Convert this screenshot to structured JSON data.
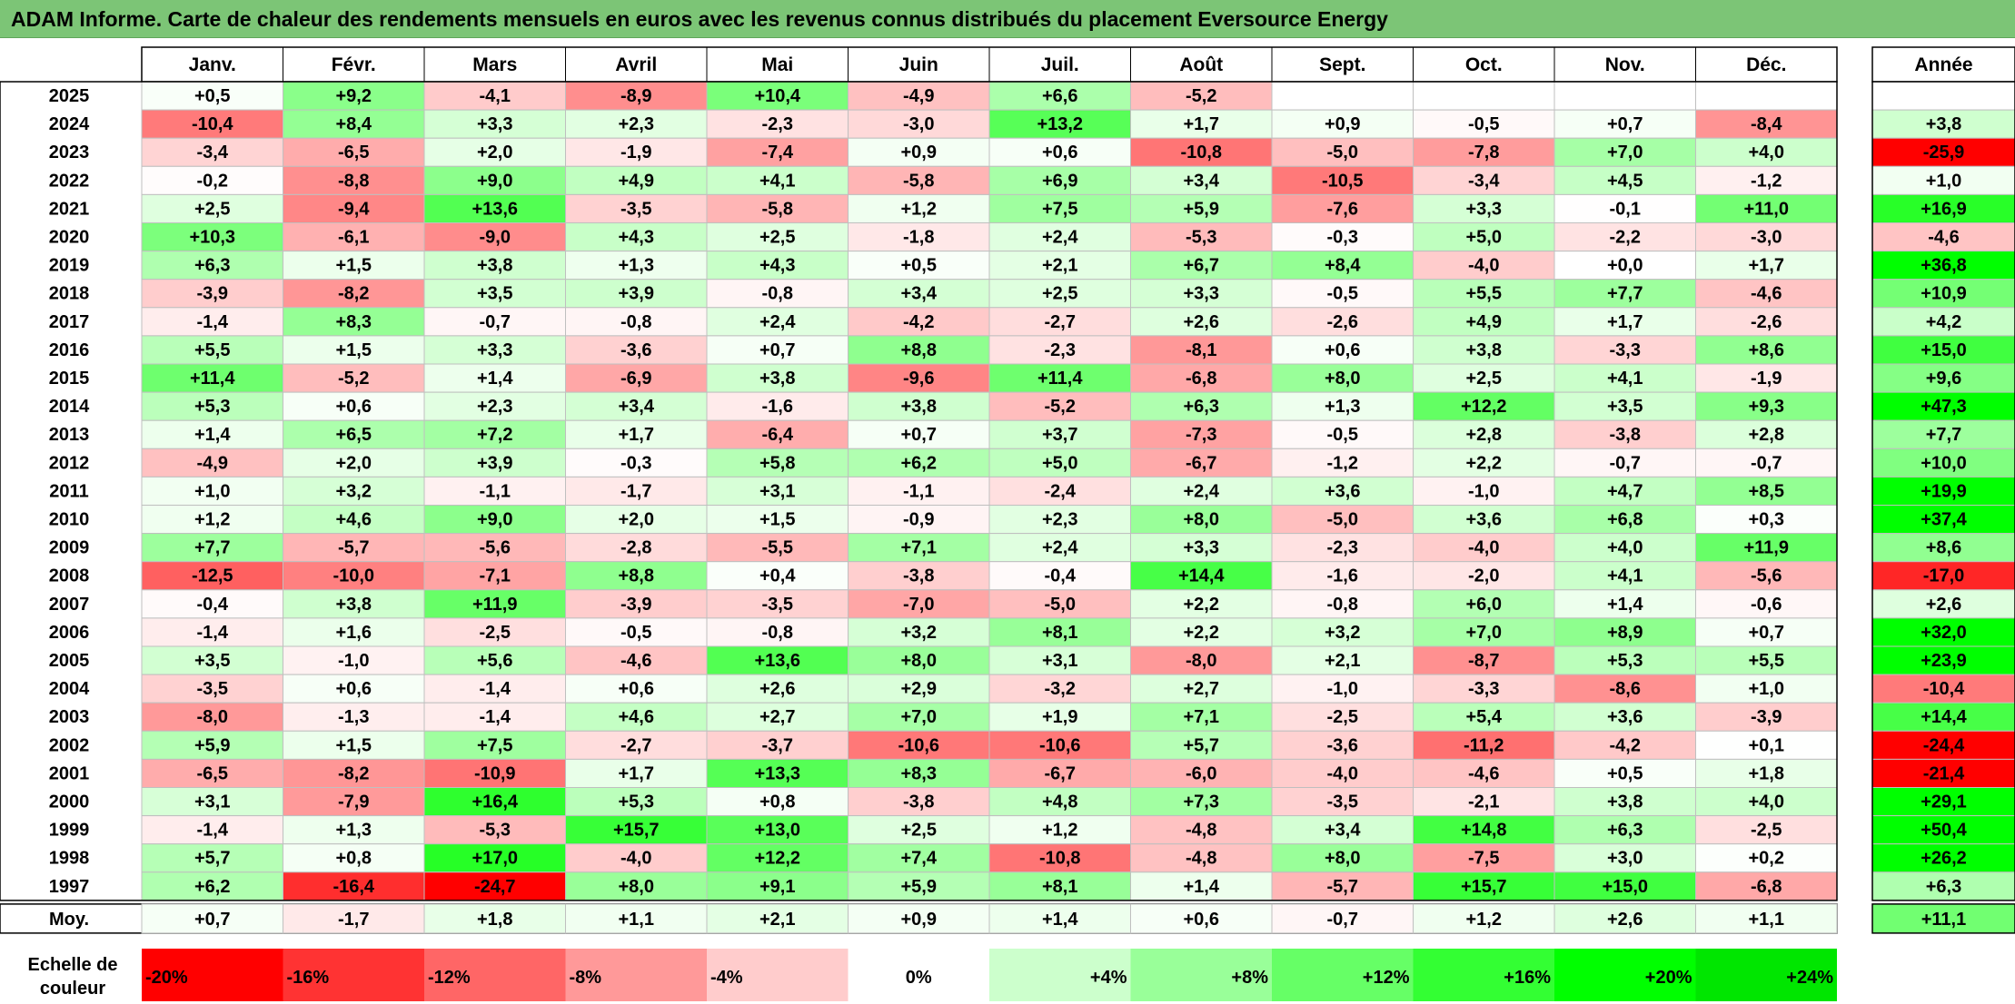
{
  "title": "ADAM Informe. Carte de chaleur des rendements mensuels en euros avec les revenus connus distribués du placement Eversource Energy",
  "chart_data": {
    "type": "heatmap",
    "title": "ADAM Informe. Carte de chaleur des rendements mensuels en euros avec les revenus connus distribués du placement Eversource Energy",
    "months": [
      "Janv.",
      "Févr.",
      "Mars",
      "Avril",
      "Mai",
      "Juin",
      "Juil.",
      "Août",
      "Sept.",
      "Oct.",
      "Nov.",
      "Déc."
    ],
    "annual_header": "Année",
    "rows": [
      {
        "year": "2025",
        "values": [
          "+0,5",
          "+9,2",
          "-4,1",
          "-8,9",
          "+10,4",
          "-4,9",
          "+6,6",
          "-5,2",
          "",
          "",
          "",
          ""
        ],
        "annual": ""
      },
      {
        "year": "2024",
        "values": [
          "-10,4",
          "+8,4",
          "+3,3",
          "+2,3",
          "-2,3",
          "-3,0",
          "+13,2",
          "+1,7",
          "+0,9",
          "-0,5",
          "+0,7",
          "-8,4"
        ],
        "annual": "+3,8"
      },
      {
        "year": "2023",
        "values": [
          "-3,4",
          "-6,5",
          "+2,0",
          "-1,9",
          "-7,4",
          "+0,9",
          "+0,6",
          "-10,8",
          "-5,0",
          "-7,8",
          "+7,0",
          "+4,0"
        ],
        "annual": "-25,9"
      },
      {
        "year": "2022",
        "values": [
          "-0,2",
          "-8,8",
          "+9,0",
          "+4,9",
          "+4,1",
          "-5,8",
          "+6,9",
          "+3,4",
          "-10,5",
          "-3,4",
          "+4,5",
          "-1,2"
        ],
        "annual": "+1,0"
      },
      {
        "year": "2021",
        "values": [
          "+2,5",
          "-9,4",
          "+13,6",
          "-3,5",
          "-5,8",
          "+1,2",
          "+7,5",
          "+5,9",
          "-7,6",
          "+3,3",
          "-0,1",
          "+11,0"
        ],
        "annual": "+16,9"
      },
      {
        "year": "2020",
        "values": [
          "+10,3",
          "-6,1",
          "-9,0",
          "+4,3",
          "+2,5",
          "-1,8",
          "+2,4",
          "-5,3",
          "-0,3",
          "+5,0",
          "-2,2",
          "-3,0"
        ],
        "annual": "-4,6"
      },
      {
        "year": "2019",
        "values": [
          "+6,3",
          "+1,5",
          "+3,8",
          "+1,3",
          "+4,3",
          "+0,5",
          "+2,1",
          "+6,7",
          "+8,4",
          "-4,0",
          "+0,0",
          "+1,7"
        ],
        "annual": "+36,8"
      },
      {
        "year": "2018",
        "values": [
          "-3,9",
          "-8,2",
          "+3,5",
          "+3,9",
          "-0,8",
          "+3,4",
          "+2,5",
          "+3,3",
          "-0,5",
          "+5,5",
          "+7,7",
          "-4,6"
        ],
        "annual": "+10,9"
      },
      {
        "year": "2017",
        "values": [
          "-1,4",
          "+8,3",
          "-0,7",
          "-0,8",
          "+2,4",
          "-4,2",
          "-2,7",
          "+2,6",
          "-2,6",
          "+4,9",
          "+1,7",
          "-2,6"
        ],
        "annual": "+4,2"
      },
      {
        "year": "2016",
        "values": [
          "+5,5",
          "+1,5",
          "+3,3",
          "-3,6",
          "+0,7",
          "+8,8",
          "-2,3",
          "-8,1",
          "+0,6",
          "+3,8",
          "-3,3",
          "+8,6"
        ],
        "annual": "+15,0"
      },
      {
        "year": "2015",
        "values": [
          "+11,4",
          "-5,2",
          "+1,4",
          "-6,9",
          "+3,8",
          "-9,6",
          "+11,4",
          "-6,8",
          "+8,0",
          "+2,5",
          "+4,1",
          "-1,9"
        ],
        "annual": "+9,6"
      },
      {
        "year": "2014",
        "values": [
          "+5,3",
          "+0,6",
          "+2,3",
          "+3,4",
          "-1,6",
          "+3,8",
          "-5,2",
          "+6,3",
          "+1,3",
          "+12,2",
          "+3,5",
          "+9,3"
        ],
        "annual": "+47,3"
      },
      {
        "year": "2013",
        "values": [
          "+1,4",
          "+6,5",
          "+7,2",
          "+1,7",
          "-6,4",
          "+0,7",
          "+3,7",
          "-7,3",
          "-0,5",
          "+2,8",
          "-3,8",
          "+2,8"
        ],
        "annual": "+7,7"
      },
      {
        "year": "2012",
        "values": [
          "-4,9",
          "+2,0",
          "+3,9",
          "-0,3",
          "+5,8",
          "+6,2",
          "+5,0",
          "-6,7",
          "-1,2",
          "+2,2",
          "-0,7",
          "-0,7"
        ],
        "annual": "+10,0"
      },
      {
        "year": "2011",
        "values": [
          "+1,0",
          "+3,2",
          "-1,1",
          "-1,7",
          "+3,1",
          "-1,1",
          "-2,4",
          "+2,4",
          "+3,6",
          "-1,0",
          "+4,7",
          "+8,5"
        ],
        "annual": "+19,9"
      },
      {
        "year": "2010",
        "values": [
          "+1,2",
          "+4,6",
          "+9,0",
          "+2,0",
          "+1,5",
          "-0,9",
          "+2,3",
          "+8,0",
          "-5,0",
          "+3,6",
          "+6,8",
          "+0,3"
        ],
        "annual": "+37,4"
      },
      {
        "year": "2009",
        "values": [
          "+7,7",
          "-5,7",
          "-5,6",
          "-2,8",
          "-5,5",
          "+7,1",
          "+2,4",
          "+3,3",
          "-2,3",
          "-4,0",
          "+4,0",
          "+11,9"
        ],
        "annual": "+8,6"
      },
      {
        "year": "2008",
        "values": [
          "-12,5",
          "-10,0",
          "-7,1",
          "+8,8",
          "+0,4",
          "-3,8",
          "-0,4",
          "+14,4",
          "-1,6",
          "-2,0",
          "+4,1",
          "-5,6"
        ],
        "annual": "-17,0"
      },
      {
        "year": "2007",
        "values": [
          "-0,4",
          "+3,8",
          "+11,9",
          "-3,9",
          "-3,5",
          "-7,0",
          "-5,0",
          "+2,2",
          "-0,8",
          "+6,0",
          "+1,4",
          "-0,6"
        ],
        "annual": "+2,6"
      },
      {
        "year": "2006",
        "values": [
          "-1,4",
          "+1,6",
          "-2,5",
          "-0,5",
          "-0,8",
          "+3,2",
          "+8,1",
          "+2,2",
          "+3,2",
          "+7,0",
          "+8,9",
          "+0,7"
        ],
        "annual": "+32,0"
      },
      {
        "year": "2005",
        "values": [
          "+3,5",
          "-1,0",
          "+5,6",
          "-4,6",
          "+13,6",
          "+8,0",
          "+3,1",
          "-8,0",
          "+2,1",
          "-8,7",
          "+5,3",
          "+5,5"
        ],
        "annual": "+23,9"
      },
      {
        "year": "2004",
        "values": [
          "-3,5",
          "+0,6",
          "-1,4",
          "+0,6",
          "+2,6",
          "+2,9",
          "-3,2",
          "+2,7",
          "-1,0",
          "-3,3",
          "-8,6",
          "+1,0"
        ],
        "annual": "-10,4"
      },
      {
        "year": "2003",
        "values": [
          "-8,0",
          "-1,3",
          "-1,4",
          "+4,6",
          "+2,7",
          "+7,0",
          "+1,9",
          "+7,1",
          "-2,5",
          "+5,4",
          "+3,6",
          "-3,9"
        ],
        "annual": "+14,4"
      },
      {
        "year": "2002",
        "values": [
          "+5,9",
          "+1,5",
          "+7,5",
          "-2,7",
          "-3,7",
          "-10,6",
          "-10,6",
          "+5,7",
          "-3,6",
          "-11,2",
          "-4,2",
          "+0,1"
        ],
        "annual": "-24,4"
      },
      {
        "year": "2001",
        "values": [
          "-6,5",
          "-8,2",
          "-10,9",
          "+1,7",
          "+13,3",
          "+8,3",
          "-6,7",
          "-6,0",
          "-4,0",
          "-4,6",
          "+0,5",
          "+1,8"
        ],
        "annual": "-21,4"
      },
      {
        "year": "2000",
        "values": [
          "+3,1",
          "-7,9",
          "+16,4",
          "+5,3",
          "+0,8",
          "-3,8",
          "+4,8",
          "+7,3",
          "-3,5",
          "-2,1",
          "+3,8",
          "+4,0"
        ],
        "annual": "+29,1"
      },
      {
        "year": "1999",
        "values": [
          "-1,4",
          "+1,3",
          "-5,3",
          "+15,7",
          "+13,0",
          "+2,5",
          "+1,2",
          "-4,8",
          "+3,4",
          "+14,8",
          "+6,3",
          "-2,5"
        ],
        "annual": "+50,4"
      },
      {
        "year": "1998",
        "values": [
          "+5,7",
          "+0,8",
          "+17,0",
          "-4,0",
          "+12,2",
          "+7,4",
          "-10,8",
          "-4,8",
          "+8,0",
          "-7,5",
          "+3,0",
          "+0,2"
        ],
        "annual": "+26,2"
      },
      {
        "year": "1997",
        "values": [
          "+6,2",
          "-16,4",
          "-24,7",
          "+8,0",
          "+9,1",
          "+5,9",
          "+8,1",
          "+1,4",
          "-5,7",
          "+15,7",
          "+15,0",
          "-6,8"
        ],
        "annual": "+6,3"
      }
    ],
    "average": {
      "label": "Moy.",
      "values": [
        "+0,7",
        "-1,7",
        "+1,8",
        "+1,1",
        "+2,1",
        "+0,9",
        "+1,4",
        "+0,6",
        "-0,7",
        "+1,2",
        "+2,6",
        "+1,1"
      ],
      "annual": "+11,1"
    },
    "scale": {
      "label_lines": [
        "Echelle de",
        "couleur"
      ],
      "steps": [
        {
          "label": "-20%",
          "value": -20,
          "color": "#ff0000"
        },
        {
          "label": "-16%",
          "value": -16,
          "color": "#ff3333"
        },
        {
          "label": "-12%",
          "value": -12,
          "color": "#ff6666"
        },
        {
          "label": "-8%",
          "value": -8,
          "color": "#ff9999"
        },
        {
          "label": "-4%",
          "value": -4,
          "color": "#ffcccc"
        },
        {
          "label": "0%",
          "value": 0,
          "color": "#ffffff"
        },
        {
          "label": "+4%",
          "value": 4,
          "color": "#ccffcc"
        },
        {
          "label": "+8%",
          "value": 8,
          "color": "#99ff99"
        },
        {
          "label": "+12%",
          "value": 12,
          "color": "#66ff66"
        },
        {
          "label": "+16%",
          "value": 16,
          "color": "#33ff33"
        },
        {
          "label": "+20%",
          "value": 20,
          "color": "#00ff00"
        },
        {
          "label": "+24%",
          "value": 24,
          "color": "#00e600"
        }
      ]
    },
    "colors": {
      "negative_full": "#ff0000",
      "positive_full": "#00ff00",
      "title_bar": "#7cc576"
    }
  }
}
